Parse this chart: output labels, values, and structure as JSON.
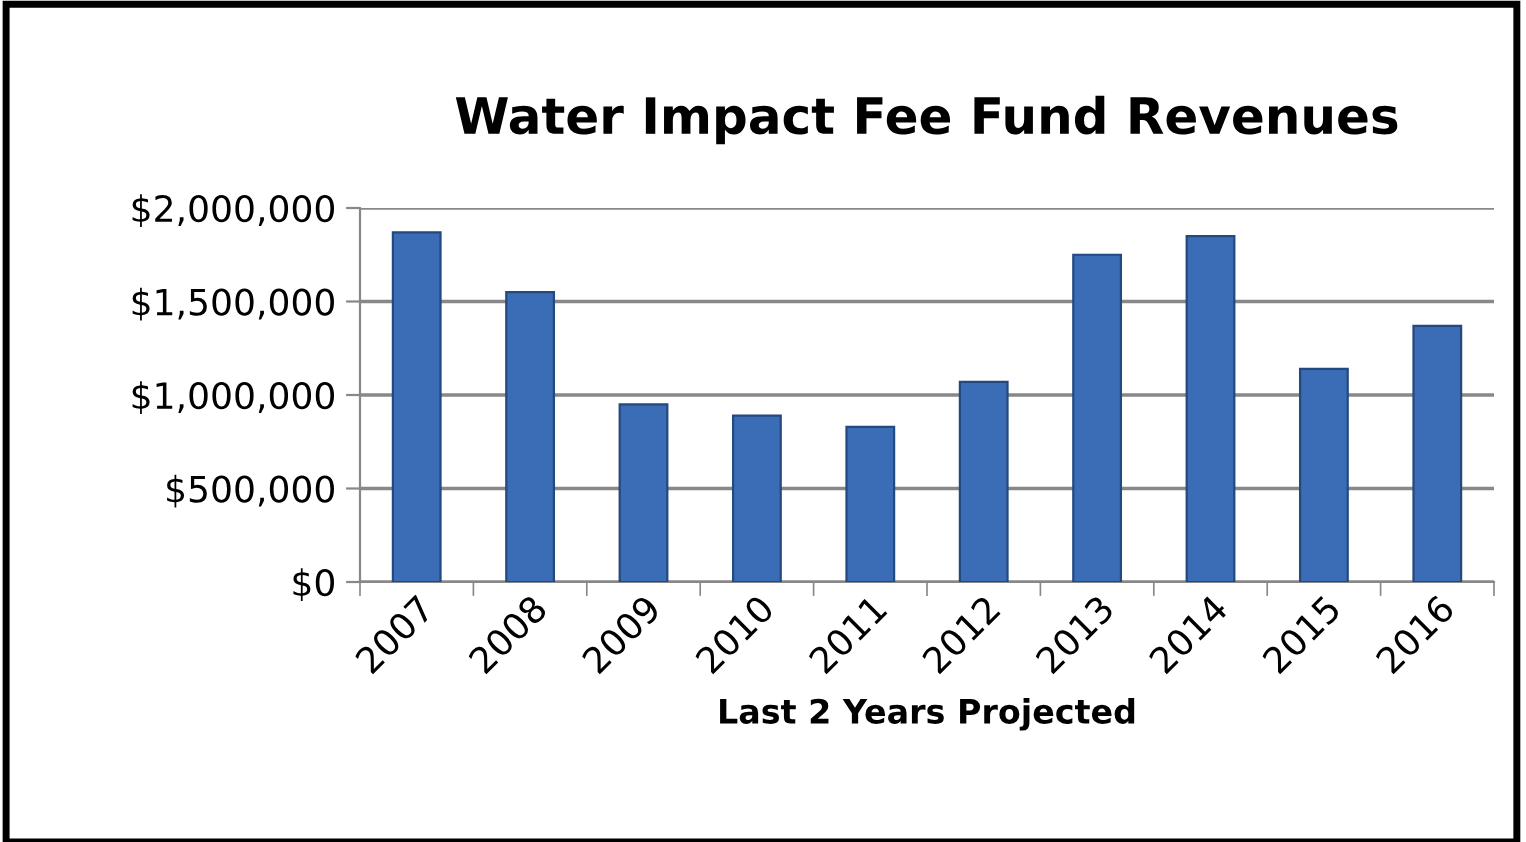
{
  "chart_data": {
    "type": "bar",
    "title": "Water Impact Fee Fund Revenues",
    "xlabel": "Last 2 Years Projected",
    "categories": [
      "2007",
      "2008",
      "2009",
      "2010",
      "2011",
      "2012",
      "2013",
      "2014",
      "2015",
      "2016"
    ],
    "values": [
      1870000,
      1550000,
      950000,
      890000,
      830000,
      1070000,
      1750000,
      1850000,
      1140000,
      1370000
    ],
    "color": "#3a6db5",
    "ylim": [
      0,
      2000000
    ],
    "yticks": [
      {
        "value": 0,
        "label": "$0"
      },
      {
        "value": 500000,
        "label": "$500,000"
      },
      {
        "value": 1000000,
        "label": "$1,000,000"
      },
      {
        "value": 1500000,
        "label": "$1,500,000"
      },
      {
        "value": 2000000,
        "label": "$2,000,000"
      }
    ],
    "grid": "y",
    "legend": false
  }
}
